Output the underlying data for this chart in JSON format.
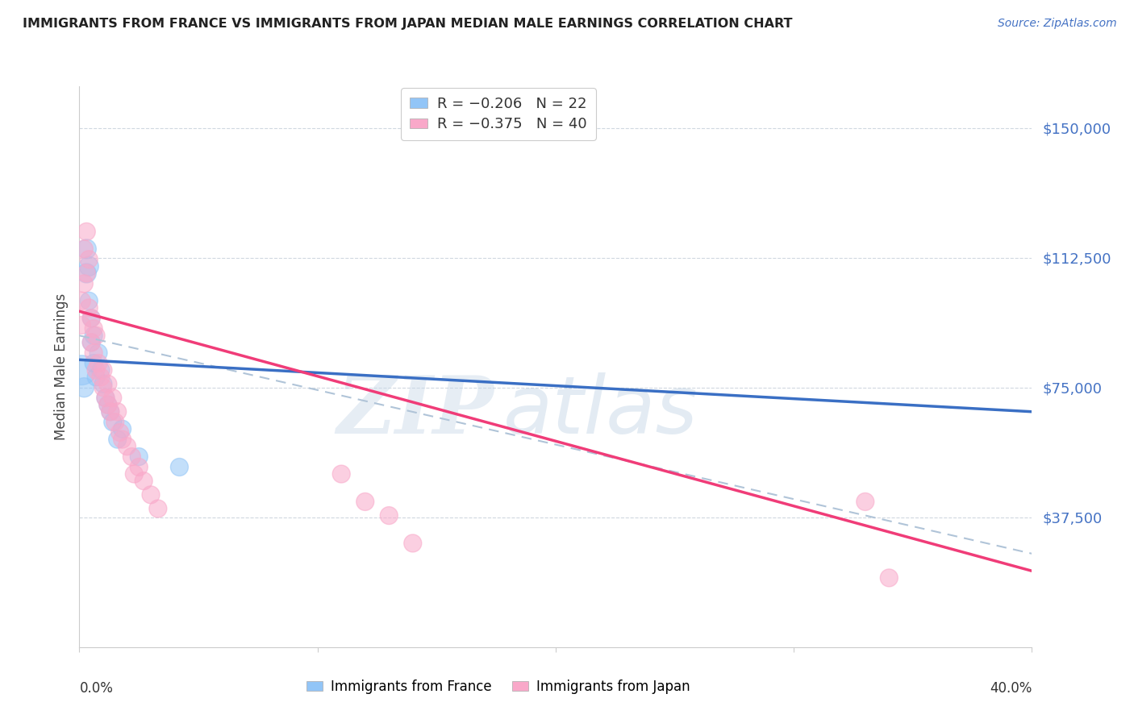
{
  "title": "IMMIGRANTS FROM FRANCE VS IMMIGRANTS FROM JAPAN MEDIAN MALE EARNINGS CORRELATION CHART",
  "source": "Source: ZipAtlas.com",
  "ylabel": "Median Male Earnings",
  "ytick_labels": [
    "$150,000",
    "$112,500",
    "$75,000",
    "$37,500"
  ],
  "ytick_values": [
    150000,
    112500,
    75000,
    37500
  ],
  "ylim": [
    0,
    162000
  ],
  "xlim": [
    0.0,
    0.4
  ],
  "legend_blue_r": "R = −0.206",
  "legend_blue_n": "N = 22",
  "legend_pink_r": "R = −0.375",
  "legend_pink_n": "N = 40",
  "color_blue": "#92c5f7",
  "color_pink": "#f9a8c9",
  "color_blue_line": "#3a6fc4",
  "color_pink_line": "#f03c78",
  "color_dashed": "#b0c4d8",
  "france_x": [
    0.001,
    0.002,
    0.003,
    0.003,
    0.004,
    0.004,
    0.005,
    0.005,
    0.006,
    0.006,
    0.007,
    0.008,
    0.009,
    0.01,
    0.011,
    0.012,
    0.013,
    0.014,
    0.016,
    0.018,
    0.025,
    0.042
  ],
  "france_y": [
    80000,
    75000,
    115000,
    108000,
    110000,
    100000,
    95000,
    88000,
    90000,
    82000,
    78000,
    85000,
    80000,
    76000,
    72000,
    70000,
    68000,
    65000,
    60000,
    63000,
    55000,
    52000
  ],
  "france_sizes": [
    700,
    300,
    300,
    300,
    300,
    250,
    250,
    250,
    250,
    250,
    250,
    250,
    250,
    250,
    250,
    250,
    250,
    250,
    250,
    250,
    250,
    250
  ],
  "japan_x": [
    0.001,
    0.001,
    0.002,
    0.002,
    0.003,
    0.003,
    0.004,
    0.004,
    0.005,
    0.005,
    0.006,
    0.006,
    0.007,
    0.007,
    0.008,
    0.009,
    0.01,
    0.01,
    0.011,
    0.012,
    0.012,
    0.013,
    0.014,
    0.015,
    0.016,
    0.017,
    0.018,
    0.02,
    0.022,
    0.023,
    0.025,
    0.027,
    0.03,
    0.033,
    0.11,
    0.12,
    0.13,
    0.14,
    0.33,
    0.34
  ],
  "japan_y": [
    100000,
    93000,
    105000,
    115000,
    120000,
    108000,
    112000,
    98000,
    95000,
    88000,
    92000,
    85000,
    90000,
    80000,
    82000,
    78000,
    80000,
    75000,
    72000,
    76000,
    70000,
    68000,
    72000,
    65000,
    68000,
    62000,
    60000,
    58000,
    55000,
    50000,
    52000,
    48000,
    44000,
    40000,
    50000,
    42000,
    38000,
    30000,
    42000,
    20000
  ],
  "japan_sizes": [
    250,
    250,
    250,
    250,
    250,
    250,
    250,
    250,
    250,
    250,
    250,
    250,
    250,
    250,
    250,
    250,
    250,
    250,
    250,
    250,
    250,
    250,
    250,
    250,
    250,
    250,
    250,
    250,
    250,
    250,
    250,
    250,
    250,
    250,
    250,
    250,
    250,
    250,
    250,
    250
  ],
  "france_line_x": [
    0.0,
    0.4
  ],
  "france_line_y": [
    83000,
    68000
  ],
  "japan_line_x": [
    0.0,
    0.4
  ],
  "japan_line_y": [
    97000,
    22000
  ],
  "dashed_line_x": [
    0.0,
    0.4
  ],
  "dashed_line_y": [
    90000,
    27000
  ]
}
